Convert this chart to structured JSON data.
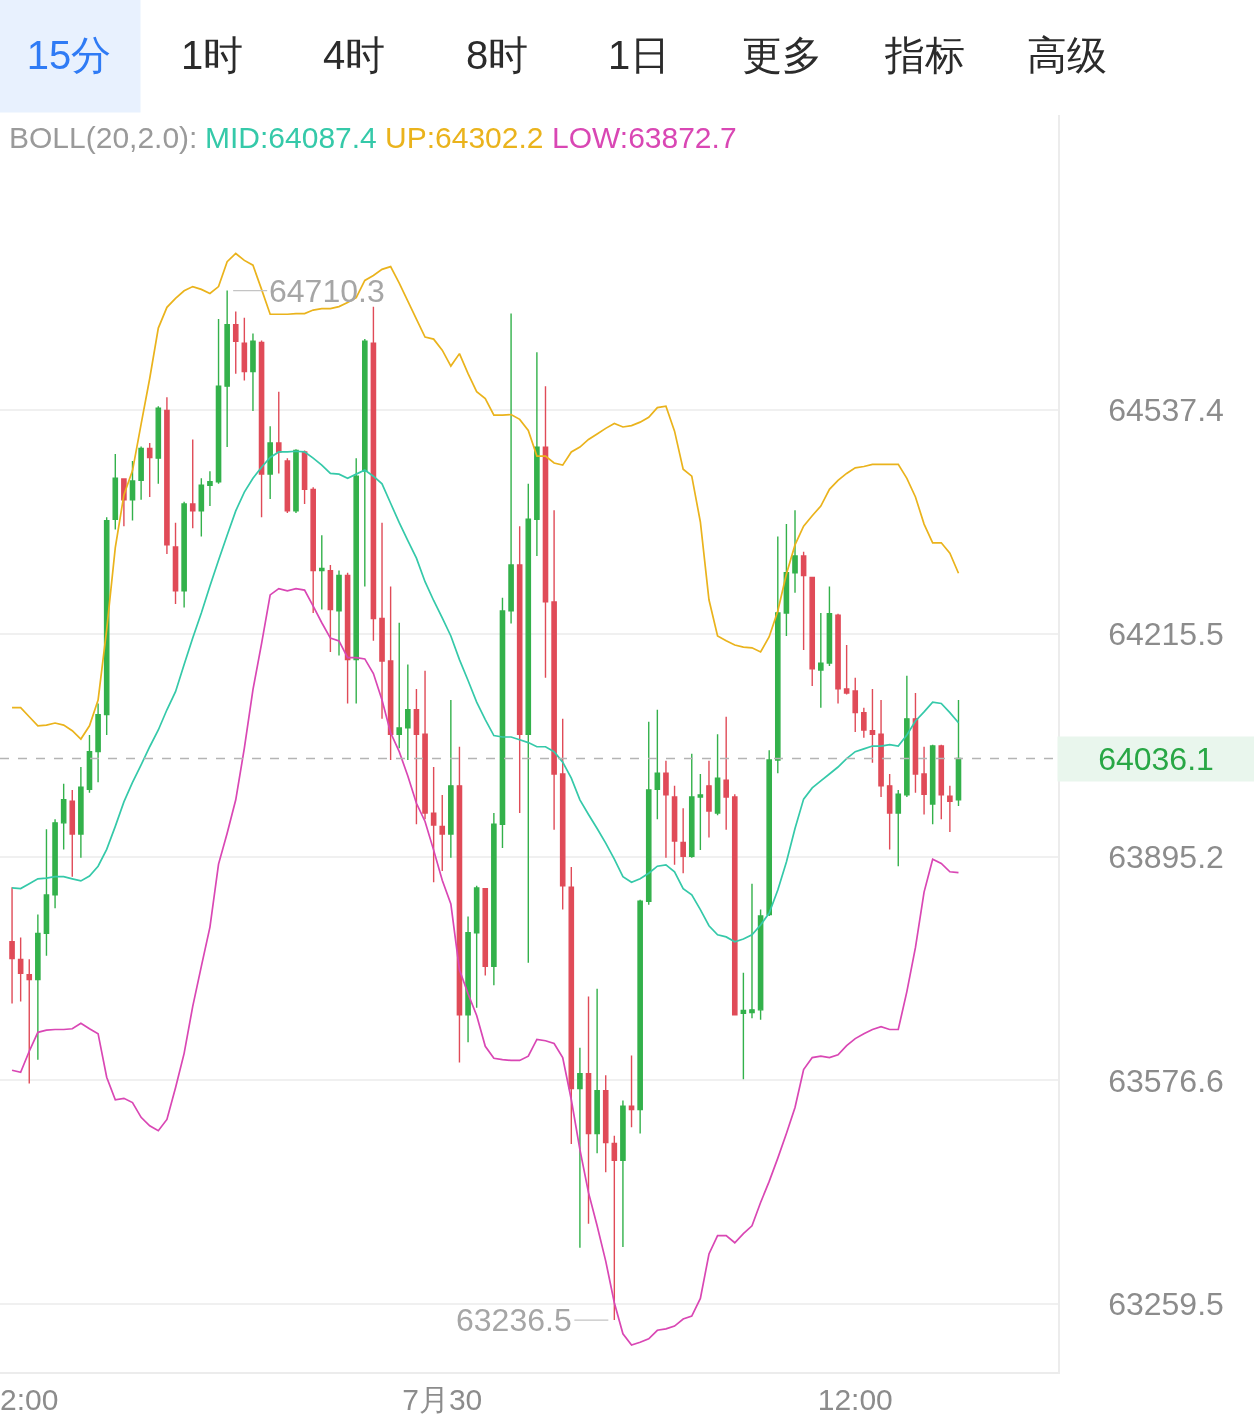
{
  "chart_data": {
    "type": "candlestick",
    "legend_title": "BOLL(20,2.0):",
    "legend": "top left",
    "log": true,
    "grid": "y",
    "ylim": [
      63163,
      64965
    ],
    "yticks": [
      63259.5,
      63576.6,
      63895.2,
      64215.5,
      64537.4
    ],
    "categories": [
      null,
      null,
      "2:00",
      null,
      null,
      null,
      null,
      null,
      null,
      null,
      null,
      null,
      null,
      null,
      null,
      null,
      null,
      null,
      null,
      null,
      null,
      null,
      null,
      null,
      null,
      null,
      null,
      null,
      null,
      null,
      null,
      null,
      null,
      null,
      null,
      null,
      null,
      null,
      null,
      null,
      null,
      null,
      null,
      null,
      null,
      null,
      null,
      null,
      null,
      null,
      "7月30",
      null,
      null,
      null,
      null,
      null,
      null,
      null,
      null,
      null,
      null,
      null,
      null,
      null,
      null,
      null,
      null,
      null,
      null,
      null,
      null,
      null,
      null,
      null,
      null,
      null,
      null,
      null,
      null,
      null,
      null,
      null,
      null,
      null,
      null,
      null,
      null,
      null,
      null,
      null,
      null,
      null,
      null,
      null,
      null,
      null,
      null,
      null,
      "12:00",
      null,
      null,
      null,
      null,
      null,
      null,
      null,
      null,
      null,
      null,
      null,
      null
    ],
    "ohlc": [
      [
        63774,
        63852,
        63686,
        63750
      ],
      [
        63749,
        63780,
        63689,
        63729
      ],
      [
        63727,
        63749,
        63572,
        63720
      ],
      [
        63720,
        63813,
        63606,
        63786
      ],
      [
        63786,
        63935,
        63754,
        63841
      ],
      [
        63841,
        63949,
        63822,
        63944
      ],
      [
        63944,
        64000,
        63906,
        63977
      ],
      [
        63975,
        63991,
        63867,
        63928
      ],
      [
        63928,
        64024,
        63894,
        63995
      ],
      [
        63992,
        64070,
        63987,
        64046
      ],
      [
        64046,
        64115,
        64002,
        64099
      ],
      [
        64099,
        64383,
        64070,
        64378
      ],
      [
        64380,
        64474,
        64365,
        64439
      ],
      [
        64438,
        64439,
        64370,
        64408
      ],
      [
        64408,
        64464,
        64378,
        64435
      ],
      [
        64436,
        64485,
        64408,
        64482
      ],
      [
        64482,
        64490,
        64412,
        64469
      ],
      [
        64468,
        64543,
        64431,
        64540
      ],
      [
        64537,
        64556,
        64330,
        64343
      ],
      [
        64340,
        64375,
        64258,
        64277
      ],
      [
        64277,
        64405,
        64253,
        64402
      ],
      [
        64402,
        64495,
        64367,
        64392
      ],
      [
        64392,
        64439,
        64355,
        64429
      ],
      [
        64429,
        64449,
        64399,
        64434
      ],
      [
        64434,
        64669,
        64431,
        64572
      ],
      [
        64572,
        64710.3,
        64484,
        64661
      ],
      [
        64661,
        64680,
        64590,
        64637
      ],
      [
        64634,
        64671,
        64580,
        64593
      ],
      [
        64593,
        64648,
        64536,
        64637
      ],
      [
        64635,
        64638,
        64383,
        64445
      ],
      [
        64445,
        64514,
        64409,
        64490
      ],
      [
        64490,
        64564,
        64446,
        64477
      ],
      [
        64464,
        64468,
        64389,
        64392
      ],
      [
        64392,
        64481,
        64389,
        64479
      ],
      [
        64477,
        64479,
        64402,
        64423
      ],
      [
        64423,
        64426,
        64245,
        64306
      ],
      [
        64306,
        64357,
        64250,
        64309
      ],
      [
        64306,
        64314,
        64189,
        64250
      ],
      [
        64248,
        64306,
        64184,
        64299
      ],
      [
        64299,
        64303,
        64115,
        64178
      ],
      [
        64178,
        64468,
        64115,
        64442
      ],
      [
        64449,
        64640,
        64283,
        64637
      ],
      [
        64634,
        64687,
        64205,
        64237
      ],
      [
        64237,
        64375,
        64093,
        64176
      ],
      [
        64176,
        64283,
        64034,
        64071
      ],
      [
        64071,
        64231,
        64051,
        64080
      ],
      [
        64080,
        64171,
        64034,
        64106
      ],
      [
        64106,
        64136,
        63942,
        64071
      ],
      [
        64071,
        64162,
        63949,
        63958
      ],
      [
        63958,
        64024,
        63859,
        63941
      ],
      [
        63939,
        63984,
        63875,
        63928
      ],
      [
        63928,
        64120,
        63894,
        63997
      ],
      [
        63997,
        64053,
        63602,
        63670
      ],
      [
        63670,
        63810,
        63631,
        63787
      ],
      [
        63787,
        63854,
        63680,
        63851
      ],
      [
        63850,
        63851,
        63726,
        63739
      ],
      [
        63739,
        63958,
        63712,
        63942
      ],
      [
        63942,
        64267,
        63908,
        64248
      ],
      [
        64248,
        64677,
        64230,
        64314
      ],
      [
        64314,
        64370,
        63958,
        64071
      ],
      [
        64071,
        64431,
        63744,
        64380
      ],
      [
        64380,
        64621,
        64327,
        64484
      ],
      [
        64484,
        64572,
        64152,
        64261
      ],
      [
        64261,
        64393,
        63934,
        64014
      ],
      [
        64014,
        64093,
        63820,
        63854
      ],
      [
        63852,
        63881,
        63486,
        63565
      ],
      [
        63565,
        63623,
        63339,
        63586
      ],
      [
        63586,
        63696,
        63373,
        63501
      ],
      [
        63501,
        63707,
        63473,
        63562
      ],
      [
        63562,
        63584,
        63446,
        63488
      ],
      [
        63487,
        63498,
        63236.5,
        63463
      ],
      [
        63463,
        63548,
        63340,
        63540
      ],
      [
        63540,
        63612,
        63510,
        63535
      ],
      [
        63535,
        63834,
        63501,
        63832
      ],
      [
        63832,
        64089,
        63827,
        63991
      ],
      [
        63992,
        64106,
        63949,
        64015
      ],
      [
        64015,
        64033,
        63894,
        63984
      ],
      [
        63981,
        63997,
        63884,
        63918
      ],
      [
        63916,
        63965,
        63872,
        63896
      ],
      [
        63896,
        64043,
        63894,
        63981
      ],
      [
        63981,
        64014,
        63905,
        63984
      ],
      [
        63997,
        64033,
        63923,
        63961
      ],
      [
        63958,
        64071,
        63955,
        64008
      ],
      [
        64005,
        64096,
        63934,
        63981
      ],
      [
        63981,
        63985,
        63669,
        63670
      ],
      [
        63672,
        63730,
        63578,
        63676
      ],
      [
        63673,
        63857,
        63665,
        63677
      ],
      [
        63677,
        63820,
        63663,
        63811
      ],
      [
        63813,
        64048,
        63811,
        64034
      ],
      [
        64034,
        64355,
        64015,
        64245
      ],
      [
        64245,
        64373,
        64212,
        64303
      ],
      [
        64303,
        64393,
        64274,
        64327
      ],
      [
        64327,
        64333,
        64192,
        64299
      ],
      [
        64296,
        64297,
        64140,
        64165
      ],
      [
        64163,
        64245,
        64109,
        64173
      ],
      [
        64173,
        64283,
        64169,
        64244
      ],
      [
        64242,
        64244,
        64115,
        64136
      ],
      [
        64136,
        64199,
        64128,
        64130
      ],
      [
        64133,
        64152,
        64074,
        64102
      ],
      [
        64102,
        64109,
        64066,
        64077
      ],
      [
        64076,
        64136,
        64030,
        64071
      ],
      [
        64071,
        64120,
        63981,
        63997
      ],
      [
        63997,
        64014,
        63906,
        63958
      ],
      [
        63958,
        63991,
        63882,
        63985
      ],
      [
        63984,
        64155,
        63981,
        64093
      ],
      [
        64093,
        64130,
        63987,
        64014
      ],
      [
        64014,
        64053,
        63956,
        63985
      ],
      [
        63971,
        64056,
        63942,
        64054
      ],
      [
        64054,
        64056,
        63949,
        63984
      ],
      [
        63982,
        63997,
        63931,
        63975
      ],
      [
        63977,
        64120,
        63968,
        64036.1
      ]
    ],
    "value_labels": [
      null,
      null,
      null,
      null,
      null,
      null,
      null,
      null,
      null,
      null,
      null,
      null,
      null,
      null,
      null,
      null,
      null,
      null,
      null,
      null,
      null,
      null,
      null,
      null,
      null,
      "64710.3",
      null,
      null,
      null,
      null,
      null,
      null,
      null,
      null,
      null,
      null,
      null,
      null,
      null,
      null,
      null,
      null,
      null,
      null,
      null,
      null,
      null,
      null,
      null,
      null,
      null,
      null,
      null,
      null,
      null,
      null,
      null,
      null,
      null,
      null,
      null,
      null,
      null,
      null,
      null,
      null,
      null,
      null,
      null,
      null,
      "63236.5",
      null,
      null,
      null,
      null,
      null,
      null,
      null,
      null,
      null,
      null,
      null,
      null,
      null,
      null,
      null,
      null,
      null,
      null,
      null,
      null,
      null,
      null,
      null,
      null,
      null,
      null,
      null,
      null,
      null,
      null,
      null,
      null,
      null,
      null,
      null,
      null,
      null,
      null,
      null,
      null
    ],
    "series": [
      {
        "name": "MID:64087.4",
        "type": "line",
        "color": "#35c9a9",
        "values": [
          63851,
          63850,
          63857,
          63864,
          63865,
          63867,
          63867,
          63864,
          63861,
          63868,
          63882,
          63906,
          63939,
          63974,
          64002,
          64027,
          64053,
          64077,
          64106,
          64132,
          64171,
          64209,
          64245,
          64284,
          64321,
          64357,
          64392,
          64419,
          64439,
          64455,
          64469,
          64477,
          64477,
          64478,
          64477,
          64468,
          64458,
          64446,
          64445,
          64439,
          64445,
          64451,
          64442,
          64431,
          64403,
          64375,
          64349,
          64324,
          64290,
          64263,
          64238,
          64212,
          64178,
          64148,
          64117,
          64092,
          64069,
          64067,
          64067,
          64063,
          64059,
          64053,
          64053,
          64046,
          64031,
          64008,
          63977,
          63956,
          63936,
          63915,
          63892,
          63867,
          63859,
          63864,
          63872,
          63882,
          63884,
          63874,
          63850,
          63841,
          63820,
          63797,
          63784,
          63781,
          63774,
          63778,
          63784,
          63798,
          63815,
          63848,
          63888,
          63936,
          63978,
          63994,
          64004,
          64014,
          64024,
          64036,
          64046,
          64050,
          64054,
          64054,
          64056,
          64054,
          64070,
          64090,
          64103,
          64117,
          64115,
          64102,
          64087.4
        ]
      },
      {
        "name": "UP:64302.2",
        "type": "line",
        "color": "#eab31c",
        "values": [
          64109,
          64109,
          64096,
          64083,
          64084,
          64087,
          64084,
          64076,
          64064,
          64083,
          64120,
          64221,
          64339,
          64415,
          64450,
          64517,
          64583,
          64656,
          64686,
          64699,
          64710,
          64716,
          64712,
          64706,
          64716,
          64752,
          64764,
          64754,
          64747,
          64712,
          64676,
          64676,
          64676,
          64677,
          64677,
          64682,
          64684,
          64684,
          64687,
          64693,
          64700,
          64725,
          64732,
          64741,
          64745,
          64721,
          64695,
          64669,
          64643,
          64640,
          64624,
          64601,
          64619,
          64590,
          64564,
          64554,
          64530,
          64530,
          64531,
          64524,
          64508,
          64471,
          64471,
          64461,
          64458,
          64477,
          64484,
          64495,
          64503,
          64511,
          64518,
          64513,
          64515,
          64520,
          64527,
          64541,
          64543,
          64507,
          64452,
          64442,
          64376,
          64264,
          64212,
          64205,
          64199,
          64196,
          64195,
          64189,
          64211,
          64248,
          64301,
          64343,
          64370,
          64385,
          64399,
          64423,
          64436,
          64446,
          64454,
          64456,
          64459,
          64459,
          64459,
          64459,
          64439,
          64412,
          64373,
          64346,
          64346,
          64331,
          64302.2
        ]
      },
      {
        "name": "LOW:63872.7",
        "type": "line",
        "color": "#d947b4",
        "values": [
          63591,
          63588,
          63618,
          63645,
          63648,
          63649,
          63649,
          63650,
          63658,
          63650,
          63643,
          63581,
          63549,
          63551,
          63545,
          63524,
          63512,
          63505,
          63521,
          63566,
          63615,
          63682,
          63739,
          63795,
          63885,
          63929,
          63977,
          64051,
          64135,
          64201,
          64271,
          64280,
          64277,
          64280,
          64278,
          64255,
          64231,
          64209,
          64205,
          64181,
          64181,
          64179,
          64158,
          64120,
          64073,
          64046,
          64011,
          63972,
          63946,
          63905,
          63862,
          63828,
          63734,
          63700,
          63669,
          63625,
          63608,
          63606,
          63605,
          63605,
          63611,
          63635,
          63633,
          63629,
          63609,
          63549,
          63478,
          63417,
          63370,
          63320,
          63261,
          63217,
          63201,
          63205,
          63210,
          63222,
          63224,
          63228,
          63238,
          63242,
          63267,
          63330,
          63356,
          63356,
          63346,
          63359,
          63370,
          63403,
          63433,
          63466,
          63501,
          63538,
          63592,
          63609,
          63611,
          63609,
          63613,
          63626,
          63636,
          63643,
          63649,
          63653,
          63649,
          63649,
          63703,
          63766,
          63845,
          63892,
          63886,
          63874,
          63872.7
        ]
      }
    ],
    "ref_lines": [
      {
        "axis": "y",
        "value": 64036.1,
        "color": "#b4b4b4",
        "line_style": "dashed"
      }
    ],
    "annotations": [
      "15分",
      "1时",
      "4时",
      "8时",
      "1日",
      "更多",
      "指标",
      "高级",
      "64036.1"
    ]
  }
}
